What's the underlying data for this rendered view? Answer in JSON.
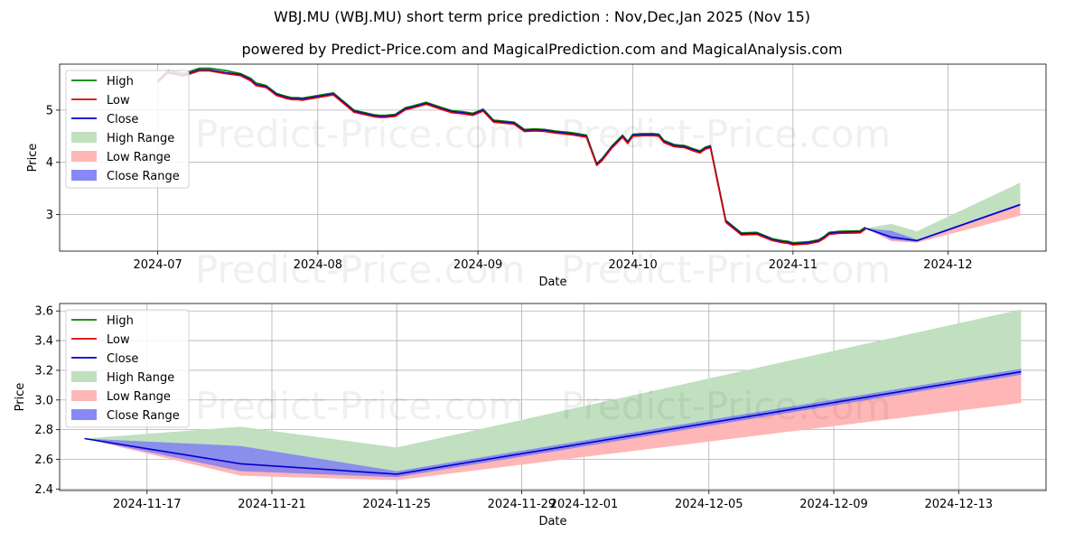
{
  "title": "WBJ.MU (WBJ.MU) short term price prediction : Nov,Dec,Jan 2025 (Nov 15)",
  "subtitle": "powered by Predict-Price.com and MagicalPrediction.com and MagicalAnalysis.com",
  "watermark": "Predict-Price.com",
  "colors": {
    "high": "#008000",
    "low": "#e00000",
    "close": "#0000cc",
    "high_range": "#c0e0c0",
    "low_range": "#ffb6b6",
    "close_range": "#7b7bf5"
  },
  "chart_data": [
    {
      "type": "line",
      "xlabel": "Date",
      "ylabel": "Price",
      "xlim": [
        "2024-06-12",
        "2024-12-20"
      ],
      "ylim": [
        2.3,
        5.88
      ],
      "x_ticks": [
        "2024-07",
        "2024-08",
        "2024-09",
        "2024-10",
        "2024-11",
        "2024-12"
      ],
      "x_tick_dates": [
        "2024-07-01",
        "2024-08-01",
        "2024-09-01",
        "2024-10-01",
        "2024-11-01",
        "2024-12-01"
      ],
      "y_ticks": [
        "3",
        "4",
        "5"
      ],
      "y_tick_values": [
        3,
        4,
        5
      ],
      "grid": true,
      "legend": "upper left",
      "legend_entries": [
        "High",
        "Low",
        "Close",
        "High Range",
        "Low Range",
        "Close Range"
      ],
      "history": {
        "x": [
          "2024-07-01",
          "2024-07-03",
          "2024-07-06",
          "2024-07-09",
          "2024-07-11",
          "2024-07-14",
          "2024-07-17",
          "2024-07-19",
          "2024-07-20",
          "2024-07-22",
          "2024-07-24",
          "2024-07-26",
          "2024-07-27",
          "2024-07-28",
          "2024-07-29",
          "2024-08-04",
          "2024-08-08",
          "2024-08-12",
          "2024-08-13",
          "2024-08-14",
          "2024-08-16",
          "2024-08-18",
          "2024-08-19",
          "2024-08-22",
          "2024-08-25",
          "2024-08-27",
          "2024-08-29",
          "2024-08-31",
          "2024-09-02",
          "2024-09-04",
          "2024-09-08",
          "2024-09-10",
          "2024-09-12",
          "2024-09-14",
          "2024-09-16",
          "2024-09-19",
          "2024-09-22",
          "2024-09-24",
          "2024-09-25",
          "2024-09-27",
          "2024-09-29",
          "2024-09-30",
          "2024-10-01",
          "2024-10-03",
          "2024-10-05",
          "2024-10-06",
          "2024-10-07",
          "2024-10-09",
          "2024-10-11",
          "2024-10-13",
          "2024-10-14",
          "2024-10-15",
          "2024-10-16",
          "2024-10-19",
          "2024-10-22",
          "2024-10-25",
          "2024-10-28",
          "2024-10-30",
          "2024-10-31",
          "2024-11-01",
          "2024-11-04",
          "2024-11-06",
          "2024-11-07",
          "2024-11-08",
          "2024-11-10",
          "2024-11-14",
          "2024-11-15"
        ],
        "close": [
          5.55,
          5.73,
          5.67,
          5.77,
          5.77,
          5.72,
          5.68,
          5.58,
          5.49,
          5.45,
          5.3,
          5.24,
          5.22,
          5.22,
          5.21,
          5.31,
          4.98,
          4.89,
          4.88,
          4.88,
          4.9,
          5.03,
          5.05,
          5.13,
          5.03,
          4.97,
          4.95,
          4.92,
          5.0,
          4.79,
          4.75,
          4.61,
          4.62,
          4.61,
          4.58,
          4.55,
          4.5,
          3.96,
          4.05,
          4.3,
          4.5,
          4.38,
          4.52,
          4.53,
          4.53,
          4.52,
          4.4,
          4.32,
          4.3,
          4.23,
          4.2,
          4.27,
          4.3,
          2.87,
          2.63,
          2.64,
          2.52,
          2.48,
          2.47,
          2.44,
          2.46,
          2.5,
          2.56,
          2.64,
          2.66,
          2.67,
          2.74
        ],
        "high": [
          5.56,
          5.76,
          5.7,
          5.8,
          5.8,
          5.76,
          5.7,
          5.61,
          5.52,
          5.47,
          5.32,
          5.26,
          5.24,
          5.24,
          5.23,
          5.33,
          5.0,
          4.91,
          4.9,
          4.9,
          4.92,
          5.05,
          5.07,
          5.15,
          5.05,
          4.99,
          4.97,
          4.94,
          5.02,
          4.81,
          4.77,
          4.63,
          4.64,
          4.63,
          4.6,
          4.57,
          4.52,
          3.98,
          4.07,
          4.32,
          4.52,
          4.4,
          4.54,
          4.55,
          4.55,
          4.54,
          4.42,
          4.34,
          4.32,
          4.25,
          4.22,
          4.29,
          4.32,
          2.89,
          2.65,
          2.66,
          2.54,
          2.5,
          2.49,
          2.46,
          2.48,
          2.52,
          2.58,
          2.66,
          2.68,
          2.69,
          2.76
        ],
        "low": [
          5.53,
          5.71,
          5.65,
          5.75,
          5.75,
          5.7,
          5.66,
          5.56,
          5.47,
          5.43,
          5.28,
          5.22,
          5.2,
          5.2,
          5.19,
          5.29,
          4.96,
          4.87,
          4.86,
          4.86,
          4.88,
          5.01,
          5.03,
          5.11,
          5.01,
          4.95,
          4.93,
          4.9,
          4.98,
          4.77,
          4.73,
          4.59,
          4.6,
          4.59,
          4.56,
          4.53,
          4.48,
          3.94,
          4.03,
          4.28,
          4.48,
          4.36,
          4.5,
          4.51,
          4.51,
          4.5,
          4.38,
          4.3,
          4.28,
          4.21,
          4.18,
          4.25,
          4.28,
          2.85,
          2.61,
          2.62,
          2.5,
          2.46,
          2.45,
          2.42,
          2.44,
          2.48,
          2.54,
          2.62,
          2.64,
          2.65,
          2.72
        ]
      },
      "forecast": {
        "x": [
          "2024-11-15",
          "2024-11-20",
          "2024-11-25",
          "2024-12-15"
        ],
        "close": [
          2.74,
          2.57,
          2.5,
          3.19
        ],
        "high": [
          2.74,
          2.82,
          2.68,
          3.61
        ],
        "low": [
          2.74,
          2.49,
          2.46,
          2.98
        ],
        "close_upper": [
          2.74,
          2.69,
          2.52,
          3.21
        ],
        "close_lower": [
          2.74,
          2.52,
          2.48,
          3.17
        ]
      }
    },
    {
      "type": "line",
      "xlabel": "Date",
      "ylabel": "Price",
      "xlim": [
        "2024-11-14.2",
        "2024-12-15.8"
      ],
      "ylim": [
        2.39,
        3.65
      ],
      "x_ticks": [
        "2024-11-17",
        "2024-11-21",
        "2024-11-25",
        "2024-11-29",
        "2024-12-01",
        "2024-12-05",
        "2024-12-09",
        "2024-12-13"
      ],
      "x_tick_dates": [
        "2024-11-17",
        "2024-11-21",
        "2024-11-25",
        "2024-11-29",
        "2024-12-01",
        "2024-12-05",
        "2024-12-09",
        "2024-12-13"
      ],
      "y_ticks": [
        "2.4",
        "2.6",
        "2.8",
        "3.0",
        "3.2",
        "3.4",
        "3.6"
      ],
      "y_tick_values": [
        2.4,
        2.6,
        2.8,
        3.0,
        3.2,
        3.4,
        3.6
      ],
      "grid": true,
      "legend": "upper left",
      "legend_entries": [
        "High",
        "Low",
        "Close",
        "High Range",
        "Low Range",
        "Close Range"
      ],
      "forecast": {
        "x": [
          "2024-11-15",
          "2024-11-20",
          "2024-11-25",
          "2024-12-15"
        ],
        "close": [
          2.74,
          2.57,
          2.5,
          3.19
        ],
        "high": [
          2.74,
          2.82,
          2.68,
          3.61
        ],
        "low": [
          2.74,
          2.49,
          2.46,
          2.98
        ],
        "close_upper": [
          2.74,
          2.69,
          2.52,
          3.21
        ],
        "close_lower": [
          2.74,
          2.52,
          2.48,
          3.17
        ]
      }
    }
  ]
}
